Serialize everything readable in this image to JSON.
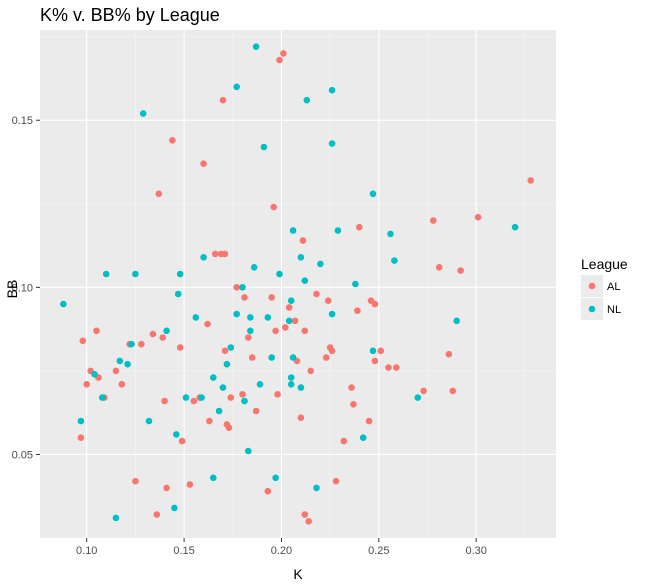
{
  "chart_data": {
    "type": "scatter",
    "title": "K%  v. BB% by League",
    "xlabel": "K",
    "ylabel": "BB",
    "xlim": [
      0.076,
      0.341
    ],
    "ylim": [
      0.025,
      0.177
    ],
    "x_ticks": [
      {
        "value": 0.1,
        "label": "0.10"
      },
      {
        "value": 0.15,
        "label": "0.15"
      },
      {
        "value": 0.2,
        "label": "0.20"
      },
      {
        "value": 0.25,
        "label": "0.25"
      },
      {
        "value": 0.3,
        "label": "0.30"
      }
    ],
    "y_ticks": [
      {
        "value": 0.05,
        "label": "0.05"
      },
      {
        "value": 0.1,
        "label": "0.10"
      },
      {
        "value": 0.15,
        "label": "0.15"
      }
    ],
    "grid": true,
    "legend": {
      "title": "League",
      "position": "right"
    },
    "series": [
      {
        "name": "AL",
        "color": "#F8766D",
        "points": [
          [
            0.098,
            0.084
          ],
          [
            0.097,
            0.055
          ],
          [
            0.1,
            0.071
          ],
          [
            0.102,
            0.075
          ],
          [
            0.105,
            0.087
          ],
          [
            0.106,
            0.073
          ],
          [
            0.109,
            0.067
          ],
          [
            0.115,
            0.075
          ],
          [
            0.118,
            0.071
          ],
          [
            0.122,
            0.083
          ],
          [
            0.125,
            0.042
          ],
          [
            0.128,
            0.083
          ],
          [
            0.134,
            0.086
          ],
          [
            0.136,
            0.032
          ],
          [
            0.137,
            0.128
          ],
          [
            0.139,
            0.085
          ],
          [
            0.14,
            0.066
          ],
          [
            0.141,
            0.04
          ],
          [
            0.144,
            0.144
          ],
          [
            0.148,
            0.082
          ],
          [
            0.149,
            0.054
          ],
          [
            0.153,
            0.041
          ],
          [
            0.155,
            0.066
          ],
          [
            0.158,
            0.067
          ],
          [
            0.16,
            0.137
          ],
          [
            0.162,
            0.089
          ],
          [
            0.163,
            0.06
          ],
          [
            0.166,
            0.11
          ],
          [
            0.169,
            0.11
          ],
          [
            0.17,
            0.156
          ],
          [
            0.171,
            0.081
          ],
          [
            0.172,
            0.059
          ],
          [
            0.173,
            0.058
          ],
          [
            0.171,
            0.11
          ],
          [
            0.174,
            0.067
          ],
          [
            0.177,
            0.1
          ],
          [
            0.18,
            0.068
          ],
          [
            0.181,
            0.097
          ],
          [
            0.183,
            0.085
          ],
          [
            0.185,
            0.079
          ],
          [
            0.187,
            0.063
          ],
          [
            0.193,
            0.039
          ],
          [
            0.195,
            0.097
          ],
          [
            0.196,
            0.124
          ],
          [
            0.197,
            0.087
          ],
          [
            0.198,
            0.068
          ],
          [
            0.199,
            0.168
          ],
          [
            0.201,
            0.17
          ],
          [
            0.202,
            0.088
          ],
          [
            0.204,
            0.094
          ],
          [
            0.207,
            0.09
          ],
          [
            0.208,
            0.078
          ],
          [
            0.21,
            0.061
          ],
          [
            0.211,
            0.114
          ],
          [
            0.212,
            0.032
          ],
          [
            0.212,
            0.087
          ],
          [
            0.214,
            0.03
          ],
          [
            0.215,
            0.075
          ],
          [
            0.218,
            0.098
          ],
          [
            0.223,
            0.079
          ],
          [
            0.224,
            0.096
          ],
          [
            0.225,
            0.082
          ],
          [
            0.226,
            0.081
          ],
          [
            0.228,
            0.042
          ],
          [
            0.232,
            0.054
          ],
          [
            0.236,
            0.07
          ],
          [
            0.237,
            0.065
          ],
          [
            0.239,
            0.093
          ],
          [
            0.24,
            0.118
          ],
          [
            0.245,
            0.06
          ],
          [
            0.246,
            0.096
          ],
          [
            0.248,
            0.095
          ],
          [
            0.248,
            0.078
          ],
          [
            0.251,
            0.081
          ],
          [
            0.255,
            0.076
          ],
          [
            0.259,
            0.076
          ],
          [
            0.273,
            0.069
          ],
          [
            0.278,
            0.12
          ],
          [
            0.281,
            0.106
          ],
          [
            0.286,
            0.08
          ],
          [
            0.288,
            0.069
          ],
          [
            0.292,
            0.105
          ],
          [
            0.301,
            0.121
          ],
          [
            0.328,
            0.132
          ]
        ]
      },
      {
        "name": "NL",
        "color": "#00BFC4",
        "points": [
          [
            0.088,
            0.095
          ],
          [
            0.097,
            0.06
          ],
          [
            0.104,
            0.074
          ],
          [
            0.108,
            0.067
          ],
          [
            0.11,
            0.104
          ],
          [
            0.115,
            0.031
          ],
          [
            0.117,
            0.078
          ],
          [
            0.121,
            0.077
          ],
          [
            0.123,
            0.083
          ],
          [
            0.125,
            0.104
          ],
          [
            0.129,
            0.152
          ],
          [
            0.132,
            0.06
          ],
          [
            0.141,
            0.087
          ],
          [
            0.145,
            0.034
          ],
          [
            0.146,
            0.056
          ],
          [
            0.147,
            0.098
          ],
          [
            0.148,
            0.104
          ],
          [
            0.151,
            0.067
          ],
          [
            0.156,
            0.091
          ],
          [
            0.159,
            0.067
          ],
          [
            0.16,
            0.109
          ],
          [
            0.165,
            0.043
          ],
          [
            0.165,
            0.073
          ],
          [
            0.168,
            0.063
          ],
          [
            0.17,
            0.07
          ],
          [
            0.172,
            0.077
          ],
          [
            0.174,
            0.082
          ],
          [
            0.177,
            0.092
          ],
          [
            0.177,
            0.16
          ],
          [
            0.18,
            0.1
          ],
          [
            0.181,
            0.066
          ],
          [
            0.183,
            0.051
          ],
          [
            0.184,
            0.087
          ],
          [
            0.184,
            0.091
          ],
          [
            0.186,
            0.106
          ],
          [
            0.187,
            0.172
          ],
          [
            0.189,
            0.071
          ],
          [
            0.191,
            0.142
          ],
          [
            0.193,
            0.091
          ],
          [
            0.195,
            0.079
          ],
          [
            0.197,
            0.043
          ],
          [
            0.199,
            0.104
          ],
          [
            0.204,
            0.09
          ],
          [
            0.205,
            0.071
          ],
          [
            0.205,
            0.073
          ],
          [
            0.205,
            0.096
          ],
          [
            0.206,
            0.117
          ],
          [
            0.206,
            0.079
          ],
          [
            0.21,
            0.07
          ],
          [
            0.21,
            0.109
          ],
          [
            0.212,
            0.102
          ],
          [
            0.213,
            0.156
          ],
          [
            0.218,
            0.04
          ],
          [
            0.22,
            0.107
          ],
          [
            0.226,
            0.143
          ],
          [
            0.226,
            0.159
          ],
          [
            0.226,
            0.092
          ],
          [
            0.229,
            0.117
          ],
          [
            0.238,
            0.101
          ],
          [
            0.242,
            0.055
          ],
          [
            0.247,
            0.081
          ],
          [
            0.247,
            0.128
          ],
          [
            0.256,
            0.116
          ],
          [
            0.258,
            0.108
          ],
          [
            0.27,
            0.067
          ],
          [
            0.29,
            0.09
          ],
          [
            0.32,
            0.118
          ]
        ]
      }
    ]
  }
}
